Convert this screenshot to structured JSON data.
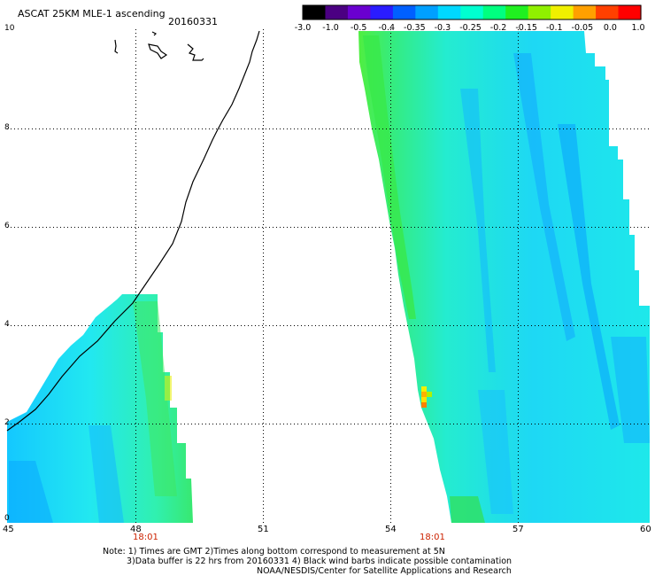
{
  "header": {
    "title": "ASCAT 25KM MLE-1 ascending",
    "date": "20160331"
  },
  "colorbar": {
    "labels": [
      "-3.0",
      "-1.0",
      "-0.5",
      "-0.4",
      "-0.35",
      "-0.3",
      "-0.25",
      "-0.2",
      "-0.15",
      "-0.1",
      "-0.05",
      "0.0",
      "1.0"
    ],
    "colors": [
      "#000000",
      "#4b0082",
      "#6a00d0",
      "#2a1cff",
      "#0060ff",
      "#00a0ff",
      "#00d8ff",
      "#00ffd0",
      "#00ff80",
      "#20f020",
      "#90f000",
      "#f0f000",
      "#ffa000",
      "#ff4000",
      "#ff0000"
    ]
  },
  "axes": {
    "x_ticks": [
      "45",
      "48",
      "51",
      "54",
      "57",
      "60"
    ],
    "y_ticks": [
      "0",
      "2",
      "4",
      "6",
      "8",
      "10"
    ],
    "times": [
      "18:01",
      "18:01"
    ]
  },
  "notes": {
    "line1": "Note: 1) Times are GMT 2)Times along bottom correspond to measurement at 5N",
    "line2": "3)Data buffer is 22 hrs from 20160331 4) Black wind barbs indicate possible contamination",
    "line3": "NOAA/NESDIS/Center for Satellite Applications and Research"
  }
}
